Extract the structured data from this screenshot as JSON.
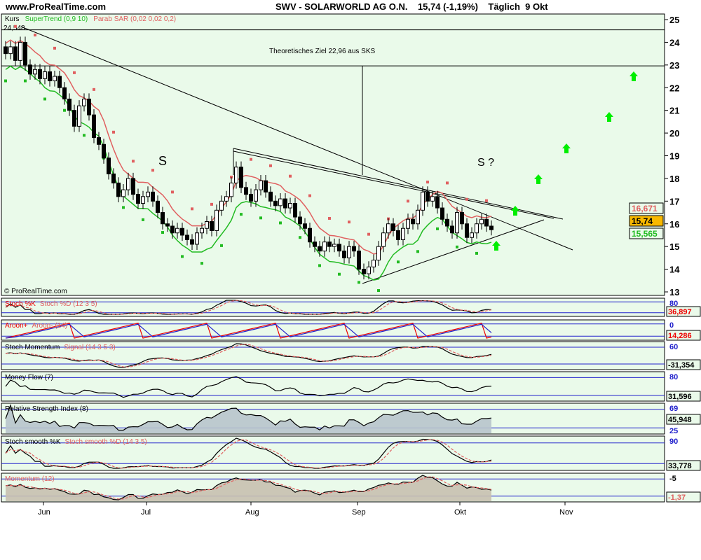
{
  "header": {
    "site": "www.ProRealTime.com",
    "title": "SWV - SOLARWORLD AG O.N.    15,74 (-1,19%)    Täglich  9 Okt"
  },
  "colors": {
    "bg": "#eafaea",
    "up": "#ffffff",
    "down": "#000000",
    "supertrend": "#22bb22",
    "sar": "#e06060",
    "arrow": "#00ee00",
    "grid": "#2222cc"
  },
  "chart_data": {
    "type": "candlestick",
    "legend": {
      "kurs": "Kurs",
      "supertrend": "SuperTrend (0,9 10)",
      "sar": "Parab SAR (0,02 0,02 0,2)"
    },
    "ylim": [
      13,
      25
    ],
    "yticks": [
      13,
      14,
      15,
      16,
      17,
      18,
      19,
      20,
      21,
      22,
      23,
      24,
      25
    ],
    "xticks": [
      "Jun",
      "Jul",
      "Aug",
      "Sep",
      "Okt",
      "Nov"
    ],
    "closes": [
      23.5,
      23.8,
      23.2,
      24.0,
      23.0,
      22.6,
      22.8,
      22.4,
      22.7,
      22.3,
      22.5,
      22.0,
      21.5,
      21.0,
      20.3,
      21.2,
      21.5,
      20.8,
      19.8,
      19.5,
      18.9,
      18.2,
      17.8,
      17.2,
      17.5,
      18.0,
      17.3,
      16.9,
      17.2,
      17.4,
      17.0,
      16.5,
      16.0,
      15.9,
      15.6,
      15.8,
      15.5,
      15.3,
      15.1,
      15.6,
      15.8,
      16.1,
      15.7,
      16.6,
      17.0,
      17.2,
      17.8,
      18.5,
      17.6,
      17.3,
      17.0,
      17.5,
      17.9,
      17.4,
      17.0,
      16.8,
      17.1,
      16.7,
      16.9,
      16.3,
      16.0,
      15.8,
      15.2,
      15.0,
      14.8,
      15.2,
      15.0,
      15.1,
      14.8,
      14.5,
      15.0,
      14.8,
      14.0,
      13.8,
      14.1,
      14.4,
      15.0,
      15.6,
      16.0,
      15.7,
      15.3,
      15.8,
      16.2,
      16.0,
      16.6,
      17.4,
      17.0,
      17.2,
      16.7,
      16.2,
      15.9,
      15.6,
      16.5,
      16.0,
      15.4,
      15.6,
      16.0,
      16.2,
      15.9,
      15.74
    ],
    "annotations": {
      "high": "24,548",
      "target": "Theoretisches Ziel 22,96 aus SKS",
      "target_value": 22.96,
      "high_value": 24.548,
      "s_left": "S",
      "s_right": "S ?",
      "copyright": "© ProRealTime.com"
    },
    "last_labels": {
      "sar": "16,671",
      "price": "15,74",
      "supertrend": "15,565"
    },
    "panels": [
      {
        "name": "stoch",
        "title_a": "Stoch %K",
        "title_b": "Stoch %D (12 3 5)",
        "value": "36,897",
        "levels": [
          "80"
        ]
      },
      {
        "name": "aroon",
        "title_a": "Aroon+",
        "title_b": "Aroon- (14)",
        "value": "14,286",
        "levels": [
          "0"
        ]
      },
      {
        "name": "stochmom",
        "title_a": "Stoch Momentum",
        "title_b": "Signal (14 3 5 3)",
        "value": "-31,354",
        "levels": [
          "60"
        ]
      },
      {
        "name": "mfi",
        "title_a": "Money Flow (7)",
        "title_b": "",
        "value": "31,596",
        "levels": [
          "80"
        ]
      },
      {
        "name": "rsi",
        "title_a": "Relative Strength Index (8)",
        "title_b": "",
        "value": "45,948",
        "levels": [
          "69",
          "25"
        ]
      },
      {
        "name": "stochsmooth",
        "title_a": "Stoch smooth %K",
        "title_b": "Stoch smooth %D (14 3 5)",
        "value": "33,778",
        "levels": [
          "90"
        ]
      },
      {
        "name": "momentum",
        "title_a": "",
        "title_b": "Momentum (12)",
        "value": "-1,37",
        "levels": [
          "-5"
        ]
      }
    ]
  }
}
